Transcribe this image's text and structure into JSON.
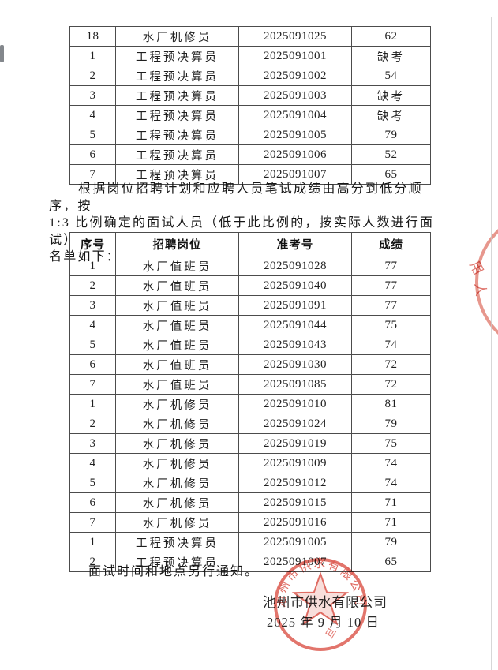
{
  "doc": {
    "columns": [
      "序号",
      "招聘岗位",
      "准考号",
      "成绩"
    ],
    "top_table_rows": [
      {
        "no": "18",
        "position": "水厂机修员",
        "ticket": "2025091025",
        "score": "62"
      },
      {
        "no": "1",
        "position": "工程预决算员",
        "ticket": "2025091001",
        "score": "缺考"
      },
      {
        "no": "2",
        "position": "工程预决算员",
        "ticket": "2025091002",
        "score": "54"
      },
      {
        "no": "3",
        "position": "工程预决算员",
        "ticket": "2025091003",
        "score": "缺考"
      },
      {
        "no": "4",
        "position": "工程预决算员",
        "ticket": "2025091004",
        "score": "缺考"
      },
      {
        "no": "5",
        "position": "工程预决算员",
        "ticket": "2025091005",
        "score": "79"
      },
      {
        "no": "6",
        "position": "工程预决算员",
        "ticket": "2025091006",
        "score": "52"
      },
      {
        "no": "7",
        "position": "工程预决算员",
        "ticket": "2025091007",
        "score": "65"
      }
    ],
    "paragraph_lines": [
      "根据岗位招聘计划和应聘人员笔试成绩由高分到低分顺序，按",
      "1:3 比例确定的面试人员（低于此比例的，按实际人数进行面试）",
      "名单如下："
    ],
    "interview_rows": [
      {
        "no": "1",
        "position": "水厂值班员",
        "ticket": "2025091028",
        "score": "77"
      },
      {
        "no": "2",
        "position": "水厂值班员",
        "ticket": "2025091040",
        "score": "77"
      },
      {
        "no": "3",
        "position": "水厂值班员",
        "ticket": "2025091091",
        "score": "77"
      },
      {
        "no": "4",
        "position": "水厂值班员",
        "ticket": "2025091044",
        "score": "75"
      },
      {
        "no": "5",
        "position": "水厂值班员",
        "ticket": "2025091043",
        "score": "74"
      },
      {
        "no": "6",
        "position": "水厂值班员",
        "ticket": "2025091030",
        "score": "72"
      },
      {
        "no": "7",
        "position": "水厂值班员",
        "ticket": "2025091085",
        "score": "72"
      },
      {
        "no": "1",
        "position": "水厂机修员",
        "ticket": "2025091010",
        "score": "81"
      },
      {
        "no": "2",
        "position": "水厂机修员",
        "ticket": "2025091024",
        "score": "79"
      },
      {
        "no": "3",
        "position": "水厂机修员",
        "ticket": "2025091019",
        "score": "75"
      },
      {
        "no": "4",
        "position": "水厂机修员",
        "ticket": "2025091009",
        "score": "74"
      },
      {
        "no": "5",
        "position": "水厂机修员",
        "ticket": "2025091012",
        "score": "74"
      },
      {
        "no": "6",
        "position": "水厂机修员",
        "ticket": "2025091015",
        "score": "71"
      },
      {
        "no": "7",
        "position": "水厂机修员",
        "ticket": "2025091016",
        "score": "71"
      },
      {
        "no": "1",
        "position": "工程预决算员",
        "ticket": "2025091005",
        "score": "79"
      },
      {
        "no": "2",
        "position": "工程预决算员",
        "ticket": "2025091007",
        "score": "65"
      }
    ],
    "footer_note": "面试时间和地点另行通知。",
    "signature": {
      "company": "池州市供水有限公司",
      "date": "2025 年 9 月 10 日"
    },
    "seal": {
      "arc_text": "池州市供水有限公司",
      "bottom_char": "旦",
      "color": "#d8453a"
    },
    "edge_seal_chars": [
      "用",
      "人"
    ]
  }
}
